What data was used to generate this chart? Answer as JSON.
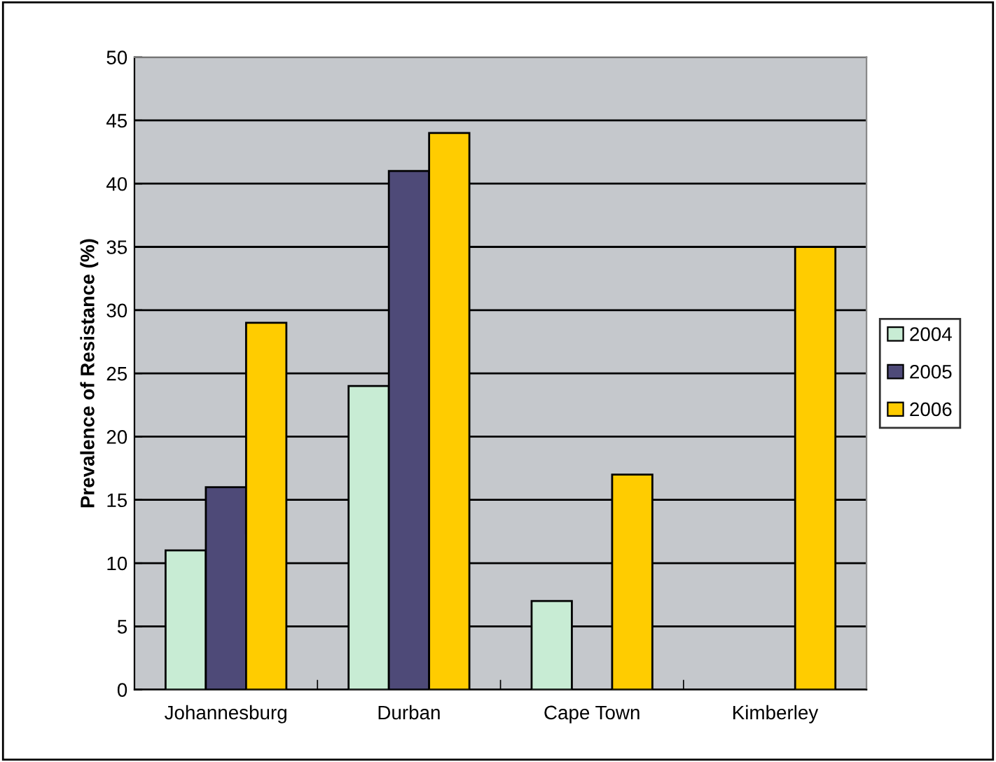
{
  "chart_data": {
    "type": "bar",
    "ylabel": "Prevalence of Resistance (%)",
    "categories": [
      "Johannesburg",
      "Durban",
      "Cape Town",
      "Kimberley"
    ],
    "series": [
      {
        "name": "2004",
        "color": "#c8ecd4",
        "values": [
          11,
          24,
          7,
          null
        ]
      },
      {
        "name": "2005",
        "color": "#4e4a78",
        "values": [
          16,
          41,
          null,
          null
        ]
      },
      {
        "name": "2006",
        "color": "#ffcc00",
        "values": [
          29,
          44,
          17,
          35
        ]
      }
    ],
    "ylim": [
      0,
      50
    ],
    "yticks": [
      0,
      5,
      10,
      15,
      20,
      25,
      30,
      35,
      40,
      45,
      50
    ],
    "grid": "y",
    "legend": "right"
  }
}
